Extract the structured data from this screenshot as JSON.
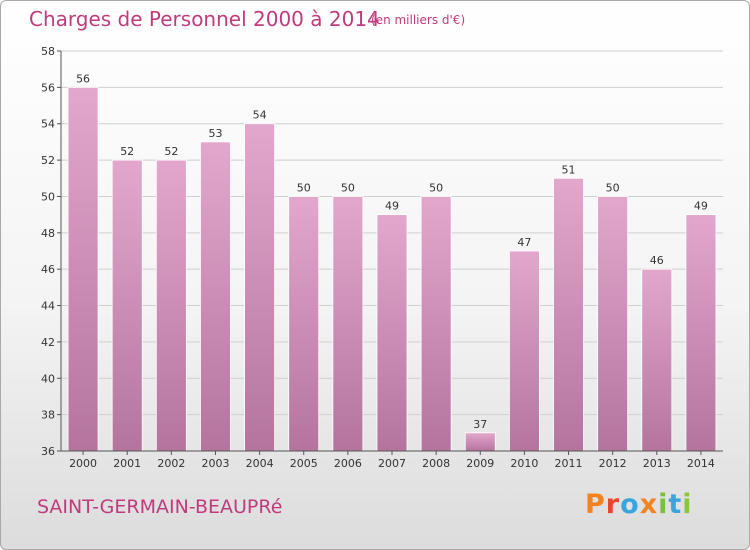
{
  "header": {
    "title": "Charges de Personnel 2000 à 2014",
    "unit_note": "(en milliers d'€)"
  },
  "footer": {
    "commune": "SAINT-GERMAIN-BEAUPRé",
    "brand": "Proxiti",
    "brand_colors": [
      "#f58220",
      "#e8452c",
      "#3aa4dc",
      "#f58220",
      "#7bbf3a",
      "#3aa4dc",
      "#8cc63f"
    ]
  },
  "colors": {
    "accent": "#c03b7e",
    "bar_top": "#e3a7cd",
    "bar_bottom": "#b4749e",
    "grid": "#cfcfcf",
    "axis_text": "#333333"
  },
  "chart_data": {
    "type": "bar",
    "title": "Charges de Personnel 2000 à 2014",
    "subtitle": "(en milliers d'€)",
    "categories": [
      "2000",
      "2001",
      "2002",
      "2003",
      "2004",
      "2005",
      "2006",
      "2007",
      "2008",
      "2009",
      "2010",
      "2011",
      "2012",
      "2013",
      "2014"
    ],
    "values": [
      56,
      52,
      52,
      53,
      54,
      50,
      50,
      49,
      50,
      37,
      47,
      51,
      50,
      46,
      49
    ],
    "xlabel": "",
    "ylabel": "",
    "ylim": [
      36,
      58
    ],
    "yticks": [
      36,
      38,
      40,
      42,
      44,
      46,
      48,
      50,
      52,
      54,
      56,
      58
    ],
    "grid": true,
    "legend": "none"
  }
}
